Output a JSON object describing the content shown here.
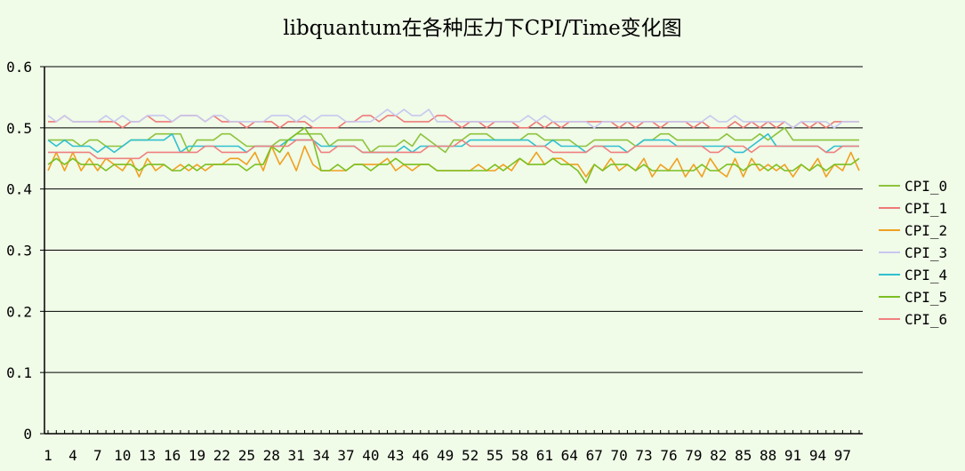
{
  "chart_data": {
    "type": "line",
    "title": "libquantum在各种压力下CPI/Time变化图",
    "ylim": [
      0,
      0.6
    ],
    "yticks": [
      "0",
      "0.1",
      "0.2",
      "0.3",
      "0.4",
      "0.5",
      "0.6"
    ],
    "ytick_values": [
      0,
      0.1,
      0.2,
      0.3,
      0.4,
      0.5,
      0.6
    ],
    "xticks": [
      "1",
      "4",
      "7",
      "10",
      "13",
      "16",
      "19",
      "22",
      "25",
      "28",
      "31",
      "34",
      "37",
      "40",
      "43",
      "46",
      "49",
      "52",
      "55",
      "58",
      "61",
      "64",
      "67",
      "70",
      "73",
      "76",
      "79",
      "82",
      "85",
      "88",
      "91",
      "94",
      "97"
    ],
    "x_count": 99,
    "legend_position": "right",
    "grid": "horizontal",
    "series": [
      {
        "name": "CPI_0",
        "color": "#8dc43c",
        "values": [
          0.48,
          0.48,
          0.48,
          0.48,
          0.47,
          0.48,
          0.48,
          0.47,
          0.47,
          0.47,
          0.48,
          0.48,
          0.48,
          0.49,
          0.49,
          0.49,
          0.49,
          0.46,
          0.48,
          0.48,
          0.48,
          0.49,
          0.49,
          0.48,
          0.47,
          0.47,
          0.47,
          0.47,
          0.48,
          0.48,
          0.49,
          0.49,
          0.49,
          0.49,
          0.47,
          0.48,
          0.48,
          0.48,
          0.48,
          0.46,
          0.47,
          0.47,
          0.47,
          0.48,
          0.47,
          0.49,
          0.48,
          0.47,
          0.46,
          0.48,
          0.48,
          0.49,
          0.49,
          0.49,
          0.48,
          0.48,
          0.48,
          0.48,
          0.49,
          0.49,
          0.48,
          0.48,
          0.48,
          0.48,
          0.47,
          0.47,
          0.48,
          0.48,
          0.48,
          0.48,
          0.48,
          0.47,
          0.48,
          0.48,
          0.49,
          0.49,
          0.48,
          0.48,
          0.48,
          0.48,
          0.48,
          0.48,
          0.49,
          0.48,
          0.48,
          0.48,
          0.49,
          0.48,
          0.49,
          0.5,
          0.48,
          0.48,
          0.48,
          0.48,
          0.48,
          0.48,
          0.48,
          0.48,
          0.48
        ]
      },
      {
        "name": "CPI_1",
        "color": "#ee7a78",
        "values": [
          0.51,
          0.51,
          0.52,
          0.51,
          0.51,
          0.51,
          0.51,
          0.51,
          0.51,
          0.5,
          0.51,
          0.51,
          0.52,
          0.51,
          0.51,
          0.51,
          0.52,
          0.52,
          0.52,
          0.51,
          0.52,
          0.51,
          0.51,
          0.51,
          0.5,
          0.51,
          0.51,
          0.51,
          0.5,
          0.51,
          0.51,
          0.51,
          0.5,
          0.5,
          0.5,
          0.5,
          0.51,
          0.51,
          0.52,
          0.52,
          0.51,
          0.52,
          0.52,
          0.51,
          0.51,
          0.51,
          0.51,
          0.52,
          0.52,
          0.51,
          0.5,
          0.51,
          0.51,
          0.5,
          0.51,
          0.51,
          0.51,
          0.5,
          0.5,
          0.51,
          0.5,
          0.51,
          0.5,
          0.51,
          0.51,
          0.51,
          0.51,
          0.51,
          0.51,
          0.5,
          0.51,
          0.5,
          0.51,
          0.51,
          0.5,
          0.51,
          0.51,
          0.51,
          0.5,
          0.51,
          0.5,
          0.5,
          0.5,
          0.51,
          0.5,
          0.51,
          0.5,
          0.51,
          0.5,
          0.51,
          0.5,
          0.51,
          0.5,
          0.51,
          0.5,
          0.51,
          0.51,
          0.51,
          0.51
        ]
      },
      {
        "name": "CPI_2",
        "color": "#f0a020",
        "values": [
          0.43,
          0.46,
          0.43,
          0.46,
          0.43,
          0.45,
          0.43,
          0.45,
          0.44,
          0.43,
          0.45,
          0.42,
          0.45,
          0.43,
          0.44,
          0.43,
          0.44,
          0.43,
          0.44,
          0.43,
          0.44,
          0.44,
          0.45,
          0.45,
          0.44,
          0.46,
          0.43,
          0.47,
          0.44,
          0.46,
          0.43,
          0.47,
          0.44,
          0.43,
          0.43,
          0.43,
          0.43,
          0.44,
          0.44,
          0.44,
          0.44,
          0.45,
          0.43,
          0.44,
          0.43,
          0.44,
          0.44,
          0.43,
          0.43,
          0.43,
          0.43,
          0.43,
          0.44,
          0.43,
          0.43,
          0.44,
          0.43,
          0.45,
          0.44,
          0.46,
          0.44,
          0.45,
          0.45,
          0.44,
          0.44,
          0.42,
          0.44,
          0.43,
          0.45,
          0.43,
          0.44,
          0.43,
          0.45,
          0.42,
          0.44,
          0.43,
          0.45,
          0.42,
          0.44,
          0.42,
          0.45,
          0.43,
          0.42,
          0.45,
          0.42,
          0.45,
          0.43,
          0.44,
          0.43,
          0.44,
          0.42,
          0.44,
          0.43,
          0.45,
          0.42,
          0.44,
          0.43,
          0.46,
          0.43
        ]
      },
      {
        "name": "CPI_3",
        "color": "#c8c8f0",
        "values": [
          0.52,
          0.51,
          0.52,
          0.51,
          0.51,
          0.51,
          0.51,
          0.52,
          0.51,
          0.52,
          0.51,
          0.51,
          0.52,
          0.52,
          0.52,
          0.51,
          0.52,
          0.52,
          0.52,
          0.51,
          0.52,
          0.52,
          0.51,
          0.51,
          0.51,
          0.51,
          0.51,
          0.52,
          0.52,
          0.52,
          0.51,
          0.52,
          0.51,
          0.52,
          0.52,
          0.52,
          0.51,
          0.51,
          0.51,
          0.51,
          0.52,
          0.53,
          0.52,
          0.53,
          0.52,
          0.52,
          0.53,
          0.51,
          0.51,
          0.51,
          0.51,
          0.51,
          0.51,
          0.51,
          0.51,
          0.51,
          0.51,
          0.51,
          0.52,
          0.51,
          0.52,
          0.51,
          0.51,
          0.51,
          0.51,
          0.51,
          0.5,
          0.51,
          0.51,
          0.51,
          0.51,
          0.51,
          0.51,
          0.51,
          0.51,
          0.51,
          0.51,
          0.51,
          0.51,
          0.51,
          0.52,
          0.51,
          0.51,
          0.52,
          0.51,
          0.51,
          0.51,
          0.51,
          0.51,
          0.51,
          0.5,
          0.51,
          0.51,
          0.51,
          0.51,
          0.5,
          0.51,
          0.51,
          0.51
        ]
      },
      {
        "name": "CPI_4",
        "color": "#30c0d0",
        "values": [
          0.48,
          0.47,
          0.48,
          0.47,
          0.47,
          0.47,
          0.46,
          0.47,
          0.46,
          0.47,
          0.48,
          0.48,
          0.48,
          0.48,
          0.48,
          0.49,
          0.46,
          0.47,
          0.47,
          0.47,
          0.47,
          0.47,
          0.47,
          0.47,
          0.46,
          0.47,
          0.47,
          0.47,
          0.47,
          0.48,
          0.48,
          0.48,
          0.48,
          0.47,
          0.47,
          0.47,
          0.47,
          0.47,
          0.46,
          0.46,
          0.46,
          0.46,
          0.46,
          0.47,
          0.46,
          0.47,
          0.47,
          0.47,
          0.47,
          0.47,
          0.47,
          0.48,
          0.48,
          0.48,
          0.48,
          0.48,
          0.48,
          0.48,
          0.48,
          0.47,
          0.47,
          0.48,
          0.47,
          0.47,
          0.47,
          0.46,
          0.47,
          0.47,
          0.47,
          0.47,
          0.46,
          0.47,
          0.48,
          0.48,
          0.48,
          0.48,
          0.47,
          0.47,
          0.47,
          0.47,
          0.47,
          0.47,
          0.47,
          0.46,
          0.46,
          0.47,
          0.48,
          0.49,
          0.47,
          0.47,
          0.47,
          0.47,
          0.47,
          0.47,
          0.46,
          0.47,
          0.47,
          0.47,
          0.47
        ]
      },
      {
        "name": "CPI_5",
        "color": "#7cc020",
        "values": [
          0.44,
          0.45,
          0.44,
          0.45,
          0.44,
          0.44,
          0.44,
          0.43,
          0.44,
          0.44,
          0.44,
          0.43,
          0.44,
          0.44,
          0.44,
          0.43,
          0.43,
          0.44,
          0.43,
          0.44,
          0.44,
          0.44,
          0.44,
          0.44,
          0.43,
          0.44,
          0.44,
          0.47,
          0.46,
          0.48,
          0.49,
          0.5,
          0.48,
          0.43,
          0.43,
          0.44,
          0.43,
          0.44,
          0.44,
          0.43,
          0.44,
          0.44,
          0.45,
          0.44,
          0.44,
          0.44,
          0.44,
          0.43,
          0.43,
          0.43,
          0.43,
          0.43,
          0.43,
          0.43,
          0.44,
          0.43,
          0.44,
          0.45,
          0.44,
          0.44,
          0.44,
          0.45,
          0.44,
          0.44,
          0.43,
          0.41,
          0.44,
          0.43,
          0.44,
          0.44,
          0.44,
          0.43,
          0.44,
          0.43,
          0.43,
          0.43,
          0.43,
          0.43,
          0.43,
          0.44,
          0.43,
          0.43,
          0.44,
          0.44,
          0.43,
          0.44,
          0.44,
          0.43,
          0.44,
          0.43,
          0.43,
          0.44,
          0.43,
          0.44,
          0.43,
          0.44,
          0.44,
          0.44,
          0.45
        ]
      },
      {
        "name": "CPI_6",
        "color": "#f08080",
        "values": [
          0.46,
          0.46,
          0.46,
          0.46,
          0.46,
          0.46,
          0.45,
          0.45,
          0.45,
          0.45,
          0.45,
          0.45,
          0.46,
          0.46,
          0.46,
          0.46,
          0.46,
          0.46,
          0.46,
          0.47,
          0.47,
          0.46,
          0.46,
          0.46,
          0.46,
          0.47,
          0.47,
          0.47,
          0.47,
          0.47,
          0.48,
          0.48,
          0.48,
          0.46,
          0.46,
          0.47,
          0.47,
          0.47,
          0.46,
          0.46,
          0.46,
          0.46,
          0.46,
          0.46,
          0.46,
          0.46,
          0.47,
          0.47,
          0.47,
          0.47,
          0.48,
          0.47,
          0.47,
          0.47,
          0.47,
          0.47,
          0.47,
          0.47,
          0.47,
          0.47,
          0.47,
          0.46,
          0.46,
          0.46,
          0.46,
          0.46,
          0.47,
          0.47,
          0.46,
          0.46,
          0.46,
          0.47,
          0.47,
          0.47,
          0.47,
          0.47,
          0.47,
          0.47,
          0.47,
          0.47,
          0.46,
          0.46,
          0.47,
          0.47,
          0.47,
          0.46,
          0.47,
          0.47,
          0.47,
          0.47,
          0.47,
          0.47,
          0.47,
          0.47,
          0.46,
          0.46,
          0.47,
          0.47,
          0.47
        ]
      }
    ]
  }
}
